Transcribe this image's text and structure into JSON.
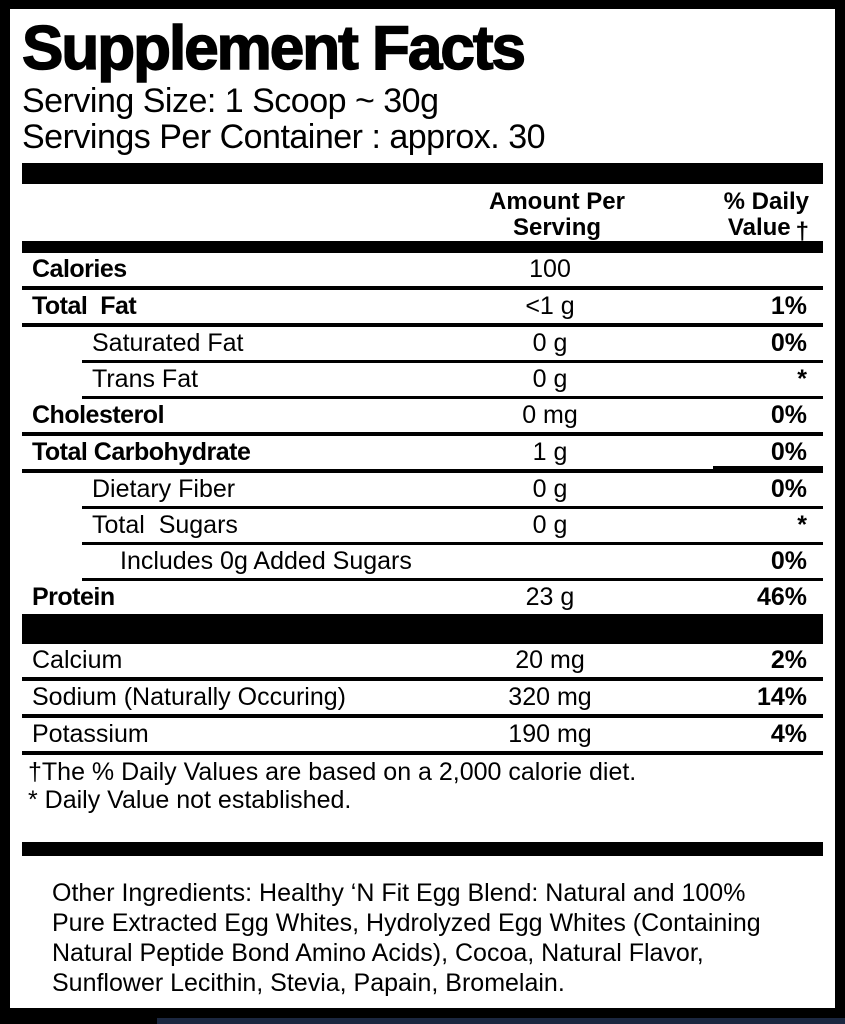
{
  "title": "Supplement Facts",
  "serving": {
    "size": "Serving Size: 1 Scoop ~ 30g",
    "per_container": "Servings Per Container : approx. 30"
  },
  "columns": {
    "amount_line1": "Amount Per",
    "amount_line2": "Serving",
    "dv_line1": "% Daily",
    "dv_line2": "Value",
    "dv_dagger": "†"
  },
  "nutrients": [
    {
      "name": "Calories",
      "amount": "100",
      "dv": ""
    },
    {
      "name": "Total  Fat",
      "amount": "<1 g",
      "dv": "1%"
    },
    {
      "name": "Saturated Fat",
      "amount": "0 g",
      "dv": "0%"
    },
    {
      "name": "Trans Fat",
      "amount": "0 g",
      "dv": "*"
    },
    {
      "name": "Cholesterol",
      "amount": "0 mg",
      "dv": "0%"
    },
    {
      "name": "Total Carbohydrate",
      "amount": "1 g",
      "dv": "0%"
    },
    {
      "name": "Dietary Fiber",
      "amount": "0 g",
      "dv": "0%"
    },
    {
      "name": "Total  Sugars",
      "amount": "0 g",
      "dv": "*"
    },
    {
      "name": "Includes 0g Added Sugars",
      "amount": "",
      "dv": "0%"
    },
    {
      "name": "Protein",
      "amount": "23 g",
      "dv": "46%"
    }
  ],
  "minerals": [
    {
      "name": "Calcium",
      "amount": "20 mg",
      "dv": "2%"
    },
    {
      "name": "Sodium (Naturally Occuring)",
      "amount": "320 mg",
      "dv": "14%"
    },
    {
      "name": "Potassium",
      "amount": "190 mg",
      "dv": "4%"
    }
  ],
  "footnotes": {
    "daily_value": "†The % Daily Values are based on a 2,000 calorie diet.",
    "not_established": "* Daily Value not established."
  },
  "other_ingredients": "Other Ingredients: Healthy ‘N Fit Egg Blend: Natural and 100% Pure Extracted Egg Whites, Hydrolyzed Egg Whites (Containing Natural Peptide Bond Amino Acids), Cocoa, Natural Flavor, Sunflower Lecithin, Stevia, Papain, Bromelain.",
  "colors": {
    "text": "#000000",
    "background": "#ffffff",
    "frame": "#000000",
    "photo_edge": "#1b2740"
  }
}
